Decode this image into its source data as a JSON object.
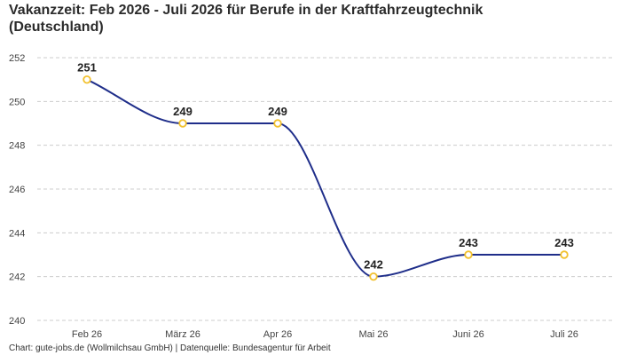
{
  "title_line1": "Vakanzzeit: Feb 2026 - Juli 2026 für Berufe in der Kraftfahrzeugtechnik",
  "title_line2": "(Deutschland)",
  "footer": "Chart: gute-jobs.de (Wollmilchsau GmbH) | Datenquelle: Bundesagentur für Arbeit",
  "colors": {
    "line": "#1f2e8a",
    "marker_stroke": "#f2c12e",
    "marker_fill": "#ffffff",
    "grid": "#cccccc"
  },
  "chart_data": {
    "type": "line",
    "categories": [
      "Feb 26",
      "März 26",
      "Apr 26",
      "Mai 26",
      "Juni 26",
      "Juli 26"
    ],
    "values": [
      251,
      249,
      249,
      242,
      243,
      243
    ],
    "data_labels": [
      "251",
      "249",
      "249",
      "242",
      "243",
      "243"
    ],
    "ylim": [
      240,
      252
    ],
    "yticks": [
      "240",
      "242",
      "244",
      "246",
      "248",
      "250",
      "252"
    ],
    "grid": true,
    "smooth": true
  }
}
